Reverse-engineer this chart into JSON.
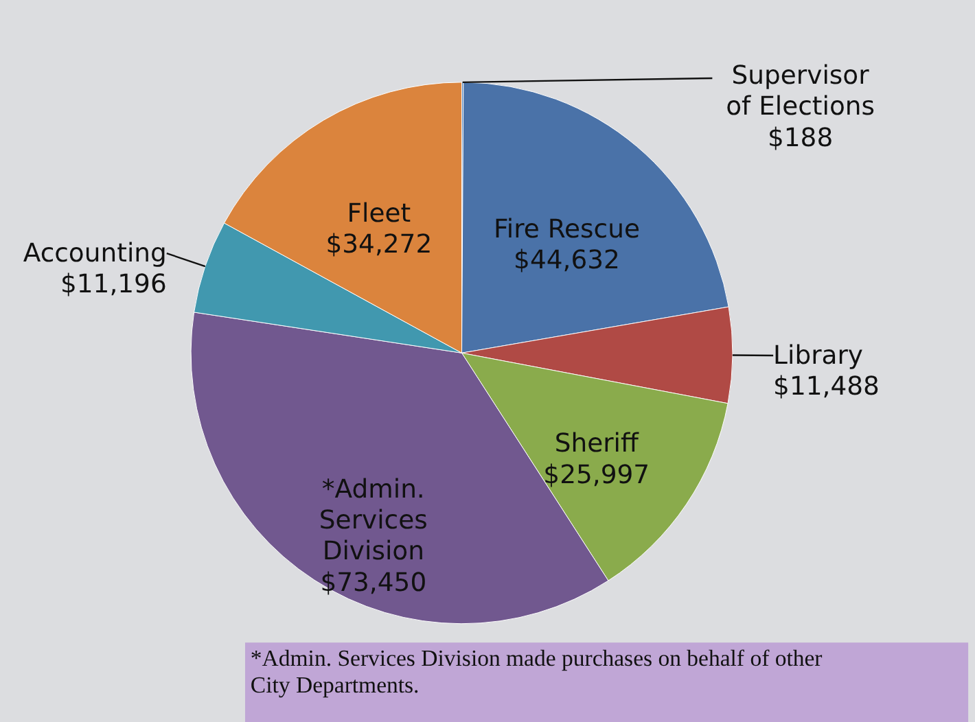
{
  "chart_data": {
    "type": "pie",
    "categories": [
      "Supervisor of Elections",
      "Fire Rescue",
      "Library",
      "Sheriff",
      "*Admin. Services Division",
      "Accounting",
      "Fleet"
    ],
    "values": [
      188,
      44632,
      11488,
      25997,
      73450,
      11196,
      34272
    ],
    "value_labels": [
      "$188",
      "$44,632",
      "$11,488",
      "$25,997",
      "$73,450",
      "$11,196",
      "$34,272"
    ],
    "colors": [
      "#4a7ab4",
      "#4a72a8",
      "#b04a45",
      "#8aab4c",
      "#71588f",
      "#4198af",
      "#db843d"
    ],
    "legend": false,
    "annotations": [
      "*Admin. Services Division made purchases on behalf of other City Departments."
    ]
  }
}
